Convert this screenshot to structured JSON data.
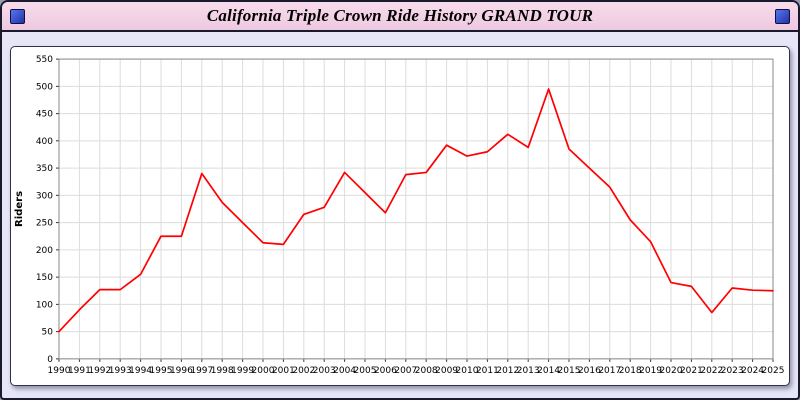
{
  "header": {
    "title": "California Triple Crown Ride History GRAND TOUR"
  },
  "icons": {
    "left_corner": "blue-square-icon",
    "right_corner": "blue-square-icon"
  },
  "colors": {
    "page_background": "#e6e6f7",
    "titlebar_background": "#f2d2e6",
    "line": "#ff0000",
    "gridline": "#dcdcdc",
    "plot_border": "#8a8a8a"
  },
  "chart_data": {
    "type": "line",
    "title": "California Triple Crown Ride History GRAND TOUR",
    "xlabel": "",
    "ylabel": "Riders",
    "ylim": [
      0,
      550
    ],
    "ytick_step": 50,
    "yticks": [
      0,
      50,
      100,
      150,
      200,
      250,
      300,
      350,
      400,
      450,
      500,
      550
    ],
    "grid": true,
    "legend": "none",
    "line_color": "#ff0000",
    "x": [
      1990,
      1991,
      1992,
      1993,
      1994,
      1995,
      1996,
      1997,
      1998,
      1999,
      2000,
      2001,
      2002,
      2003,
      2004,
      2005,
      2006,
      2007,
      2008,
      2009,
      2010,
      2011,
      2012,
      2013,
      2014,
      2015,
      2016,
      2017,
      2018,
      2019,
      2020,
      2021,
      2022,
      2023,
      2024,
      2025
    ],
    "values": [
      50,
      90,
      127,
      127,
      155,
      225,
      225,
      340,
      287,
      250,
      213,
      210,
      265,
      278,
      342,
      305,
      268,
      338,
      342,
      392,
      372,
      380,
      412,
      388,
      495,
      385,
      350,
      315,
      255,
      215,
      140,
      133,
      85,
      130,
      126,
      125
    ]
  }
}
